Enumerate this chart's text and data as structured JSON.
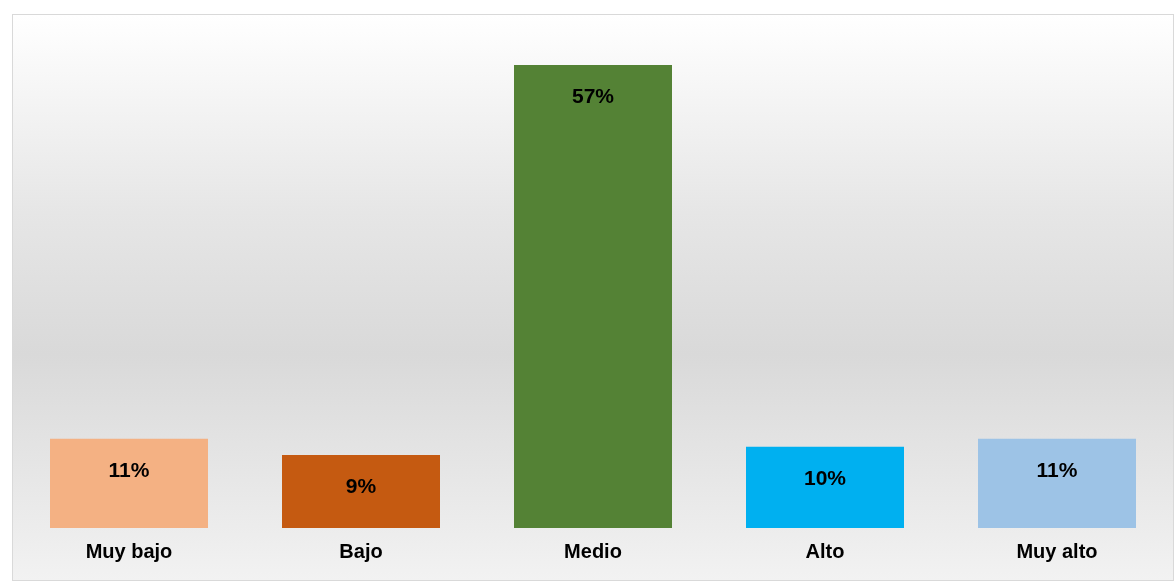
{
  "chart_data": {
    "type": "bar",
    "categories": [
      "Muy bajo",
      "Bajo",
      "Medio",
      "Alto",
      "Muy alto"
    ],
    "values": [
      11,
      9,
      57,
      10,
      11
    ],
    "colors": [
      "#f4b183",
      "#c55a11",
      "#548235",
      "#00b0f0",
      "#9dc3e6"
    ],
    "value_labels": [
      "11%",
      "9%",
      "57%",
      "10%",
      "11%"
    ],
    "grid": false,
    "legend": false
  }
}
